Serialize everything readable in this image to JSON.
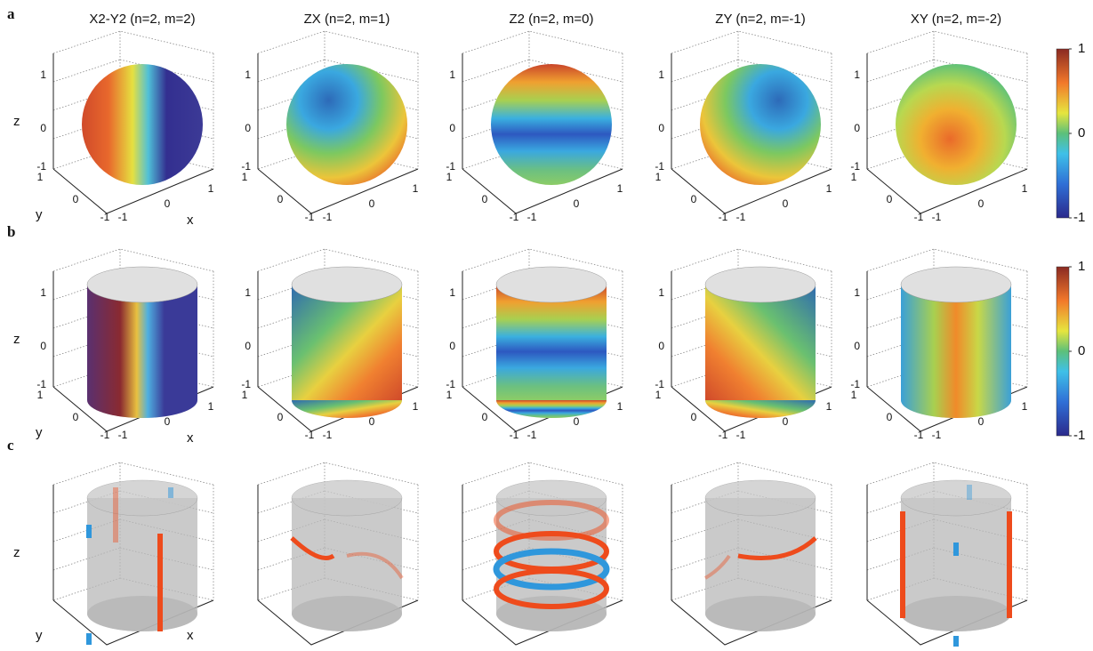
{
  "panel_labels": [
    "a",
    "b",
    "c"
  ],
  "column_titles": [
    "X2-Y2 (n=2, m=2)",
    "ZX (n=2, m=1)",
    "Z2 (n=2, m=0)",
    "ZY (n=2, m=-1)",
    "XY (n=2, m=-2)"
  ],
  "axis_labels": {
    "x": "x",
    "y": "y",
    "z": "z"
  },
  "axis_ticks": {
    "z": [
      1,
      0,
      -1
    ],
    "y": [
      1,
      0,
      -1
    ],
    "x": [
      -1,
      0,
      1
    ]
  },
  "colorbar": {
    "ticks": [
      1,
      0,
      -1
    ]
  }
}
